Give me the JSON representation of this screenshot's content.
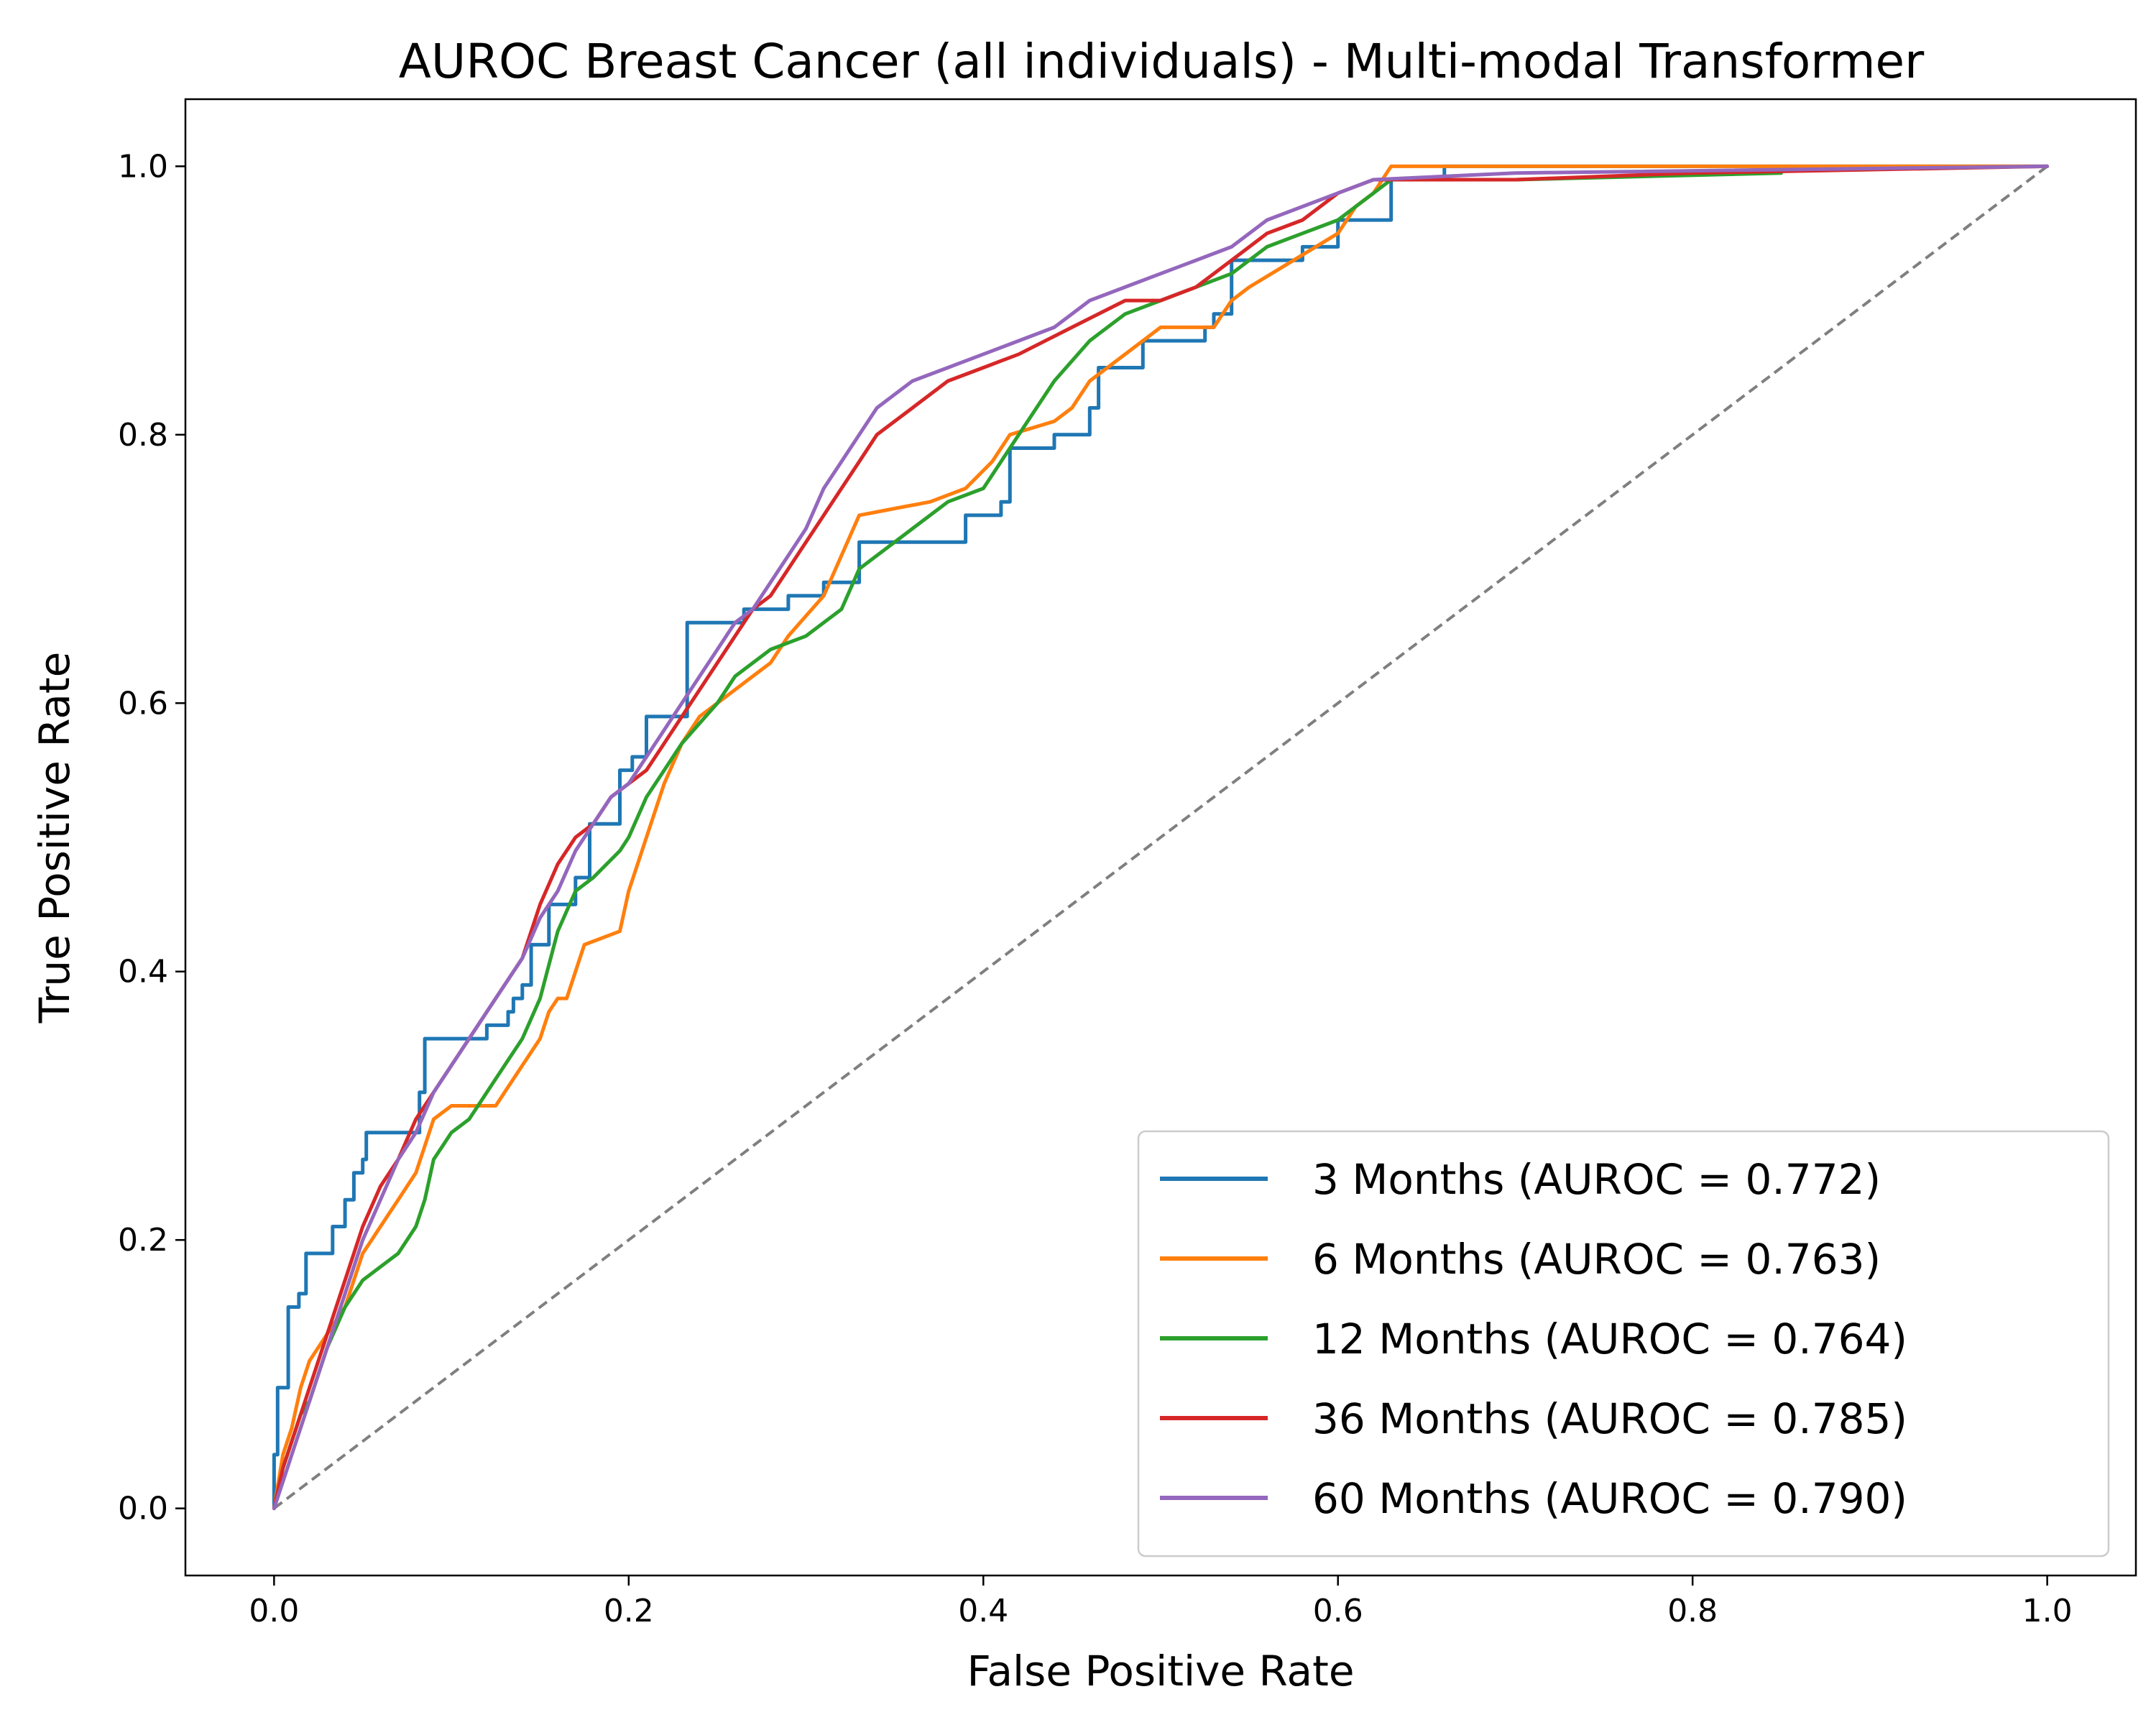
{
  "chart_data": {
    "type": "line",
    "title": "AUROC Breast Cancer (all individuals) - Multi-modal Transformer",
    "xlabel": "False Positive Rate",
    "ylabel": "True Positive Rate",
    "xlim": [
      -0.05,
      1.05
    ],
    "ylim": [
      -0.05,
      1.05
    ],
    "xticks": [
      "0.0",
      "0.2",
      "0.4",
      "0.6",
      "0.8",
      "1.0"
    ],
    "yticks": [
      "0.0",
      "0.2",
      "0.4",
      "0.6",
      "0.8",
      "1.0"
    ],
    "grid": false,
    "legend_position": "lower-right",
    "reference_line": {
      "x": [
        0,
        1
      ],
      "y": [
        0,
        1
      ],
      "style": "dashed",
      "color": "#7f7f7f"
    },
    "series": [
      {
        "name": "3 Months (AUROC = 0.772)",
        "color": "#1f77b4",
        "points": [
          [
            0,
            0
          ],
          [
            0,
            0.04
          ],
          [
            0.002,
            0.04
          ],
          [
            0.002,
            0.09
          ],
          [
            0.008,
            0.09
          ],
          [
            0.008,
            0.15
          ],
          [
            0.014,
            0.15
          ],
          [
            0.014,
            0.16
          ],
          [
            0.018,
            0.16
          ],
          [
            0.018,
            0.19
          ],
          [
            0.033,
            0.19
          ],
          [
            0.033,
            0.21
          ],
          [
            0.04,
            0.21
          ],
          [
            0.04,
            0.23
          ],
          [
            0.045,
            0.23
          ],
          [
            0.045,
            0.25
          ],
          [
            0.05,
            0.25
          ],
          [
            0.05,
            0.26
          ],
          [
            0.052,
            0.26
          ],
          [
            0.052,
            0.28
          ],
          [
            0.082,
            0.28
          ],
          [
            0.082,
            0.31
          ],
          [
            0.085,
            0.31
          ],
          [
            0.085,
            0.35
          ],
          [
            0.12,
            0.35
          ],
          [
            0.12,
            0.36
          ],
          [
            0.132,
            0.36
          ],
          [
            0.132,
            0.37
          ],
          [
            0.135,
            0.37
          ],
          [
            0.135,
            0.38
          ],
          [
            0.14,
            0.38
          ],
          [
            0.14,
            0.39
          ],
          [
            0.145,
            0.39
          ],
          [
            0.145,
            0.42
          ],
          [
            0.155,
            0.42
          ],
          [
            0.155,
            0.45
          ],
          [
            0.17,
            0.45
          ],
          [
            0.17,
            0.47
          ],
          [
            0.178,
            0.47
          ],
          [
            0.178,
            0.51
          ],
          [
            0.195,
            0.51
          ],
          [
            0.195,
            0.55
          ],
          [
            0.202,
            0.55
          ],
          [
            0.202,
            0.56
          ],
          [
            0.21,
            0.56
          ],
          [
            0.21,
            0.59
          ],
          [
            0.233,
            0.59
          ],
          [
            0.233,
            0.66
          ],
          [
            0.265,
            0.66
          ],
          [
            0.265,
            0.67
          ],
          [
            0.29,
            0.67
          ],
          [
            0.29,
            0.68
          ],
          [
            0.31,
            0.68
          ],
          [
            0.31,
            0.69
          ],
          [
            0.33,
            0.69
          ],
          [
            0.33,
            0.72
          ],
          [
            0.39,
            0.72
          ],
          [
            0.39,
            0.74
          ],
          [
            0.41,
            0.74
          ],
          [
            0.41,
            0.75
          ],
          [
            0.415,
            0.75
          ],
          [
            0.415,
            0.79
          ],
          [
            0.44,
            0.79
          ],
          [
            0.44,
            0.8
          ],
          [
            0.46,
            0.8
          ],
          [
            0.46,
            0.82
          ],
          [
            0.465,
            0.82
          ],
          [
            0.465,
            0.85
          ],
          [
            0.49,
            0.85
          ],
          [
            0.49,
            0.87
          ],
          [
            0.525,
            0.87
          ],
          [
            0.525,
            0.88
          ],
          [
            0.53,
            0.88
          ],
          [
            0.53,
            0.89
          ],
          [
            0.54,
            0.89
          ],
          [
            0.54,
            0.93
          ],
          [
            0.58,
            0.93
          ],
          [
            0.58,
            0.94
          ],
          [
            0.6,
            0.94
          ],
          [
            0.6,
            0.96
          ],
          [
            0.63,
            0.96
          ],
          [
            0.63,
            0.99
          ],
          [
            0.66,
            0.99
          ],
          [
            0.66,
            1.0
          ],
          [
            1.0,
            1.0
          ]
        ]
      },
      {
        "name": "6 Months (AUROC = 0.763)",
        "color": "#ff7f0e",
        "points": [
          [
            0,
            0
          ],
          [
            0.005,
            0.04
          ],
          [
            0.01,
            0.06
          ],
          [
            0.015,
            0.09
          ],
          [
            0.02,
            0.11
          ],
          [
            0.025,
            0.12
          ],
          [
            0.03,
            0.13
          ],
          [
            0.035,
            0.14
          ],
          [
            0.04,
            0.15
          ],
          [
            0.045,
            0.17
          ],
          [
            0.05,
            0.19
          ],
          [
            0.055,
            0.2
          ],
          [
            0.06,
            0.21
          ],
          [
            0.07,
            0.23
          ],
          [
            0.08,
            0.25
          ],
          [
            0.085,
            0.27
          ],
          [
            0.09,
            0.29
          ],
          [
            0.1,
            0.3
          ],
          [
            0.125,
            0.3
          ],
          [
            0.13,
            0.31
          ],
          [
            0.135,
            0.32
          ],
          [
            0.14,
            0.33
          ],
          [
            0.15,
            0.35
          ],
          [
            0.155,
            0.37
          ],
          [
            0.16,
            0.38
          ],
          [
            0.165,
            0.38
          ],
          [
            0.17,
            0.4
          ],
          [
            0.175,
            0.42
          ],
          [
            0.195,
            0.43
          ],
          [
            0.2,
            0.46
          ],
          [
            0.205,
            0.48
          ],
          [
            0.21,
            0.5
          ],
          [
            0.22,
            0.54
          ],
          [
            0.23,
            0.57
          ],
          [
            0.24,
            0.59
          ],
          [
            0.25,
            0.6
          ],
          [
            0.27,
            0.62
          ],
          [
            0.28,
            0.63
          ],
          [
            0.29,
            0.65
          ],
          [
            0.31,
            0.68
          ],
          [
            0.32,
            0.71
          ],
          [
            0.33,
            0.74
          ],
          [
            0.35,
            0.745
          ],
          [
            0.37,
            0.75
          ],
          [
            0.39,
            0.76
          ],
          [
            0.405,
            0.78
          ],
          [
            0.415,
            0.8
          ],
          [
            0.44,
            0.81
          ],
          [
            0.45,
            0.82
          ],
          [
            0.46,
            0.84
          ],
          [
            0.47,
            0.85
          ],
          [
            0.48,
            0.86
          ],
          [
            0.49,
            0.87
          ],
          [
            0.5,
            0.88
          ],
          [
            0.53,
            0.88
          ],
          [
            0.54,
            0.9
          ],
          [
            0.55,
            0.91
          ],
          [
            0.6,
            0.95
          ],
          [
            0.61,
            0.97
          ],
          [
            0.62,
            0.98
          ],
          [
            0.63,
            1.0
          ],
          [
            1.0,
            1.0
          ]
        ]
      },
      {
        "name": "12 Months (AUROC = 0.764)",
        "color": "#2ca02c",
        "points": [
          [
            0,
            0
          ],
          [
            0.005,
            0.03
          ],
          [
            0.01,
            0.05
          ],
          [
            0.015,
            0.07
          ],
          [
            0.02,
            0.08
          ],
          [
            0.025,
            0.1
          ],
          [
            0.03,
            0.12
          ],
          [
            0.04,
            0.15
          ],
          [
            0.05,
            0.17
          ],
          [
            0.06,
            0.18
          ],
          [
            0.07,
            0.19
          ],
          [
            0.08,
            0.21
          ],
          [
            0.085,
            0.23
          ],
          [
            0.09,
            0.26
          ],
          [
            0.095,
            0.27
          ],
          [
            0.1,
            0.28
          ],
          [
            0.11,
            0.29
          ],
          [
            0.12,
            0.31
          ],
          [
            0.13,
            0.33
          ],
          [
            0.14,
            0.35
          ],
          [
            0.15,
            0.38
          ],
          [
            0.16,
            0.43
          ],
          [
            0.17,
            0.46
          ],
          [
            0.18,
            0.47
          ],
          [
            0.195,
            0.49
          ],
          [
            0.2,
            0.5
          ],
          [
            0.21,
            0.53
          ],
          [
            0.22,
            0.55
          ],
          [
            0.23,
            0.57
          ],
          [
            0.25,
            0.6
          ],
          [
            0.26,
            0.62
          ],
          [
            0.28,
            0.64
          ],
          [
            0.3,
            0.65
          ],
          [
            0.32,
            0.67
          ],
          [
            0.33,
            0.7
          ],
          [
            0.34,
            0.71
          ],
          [
            0.36,
            0.73
          ],
          [
            0.38,
            0.75
          ],
          [
            0.4,
            0.76
          ],
          [
            0.41,
            0.78
          ],
          [
            0.42,
            0.8
          ],
          [
            0.44,
            0.84
          ],
          [
            0.46,
            0.87
          ],
          [
            0.48,
            0.89
          ],
          [
            0.5,
            0.9
          ],
          [
            0.52,
            0.91
          ],
          [
            0.54,
            0.92
          ],
          [
            0.56,
            0.94
          ],
          [
            0.58,
            0.95
          ],
          [
            0.6,
            0.96
          ],
          [
            0.62,
            0.98
          ],
          [
            0.63,
            0.99
          ],
          [
            0.7,
            0.99
          ],
          [
            0.85,
            0.995
          ]
        ]
      },
      {
        "name": "36 Months (AUROC = 0.785)",
        "color": "#d62728",
        "points": [
          [
            0,
            0
          ],
          [
            0.005,
            0.03
          ],
          [
            0.01,
            0.05
          ],
          [
            0.02,
            0.09
          ],
          [
            0.03,
            0.13
          ],
          [
            0.04,
            0.17
          ],
          [
            0.05,
            0.21
          ],
          [
            0.06,
            0.24
          ],
          [
            0.07,
            0.26
          ],
          [
            0.08,
            0.29
          ],
          [
            0.09,
            0.31
          ],
          [
            0.1,
            0.33
          ],
          [
            0.12,
            0.37
          ],
          [
            0.14,
            0.41
          ],
          [
            0.15,
            0.45
          ],
          [
            0.16,
            0.48
          ],
          [
            0.17,
            0.5
          ],
          [
            0.18,
            0.51
          ],
          [
            0.19,
            0.53
          ],
          [
            0.2,
            0.54
          ],
          [
            0.21,
            0.55
          ],
          [
            0.22,
            0.57
          ],
          [
            0.23,
            0.59
          ],
          [
            0.24,
            0.61
          ],
          [
            0.25,
            0.63
          ],
          [
            0.26,
            0.65
          ],
          [
            0.27,
            0.67
          ],
          [
            0.28,
            0.68
          ],
          [
            0.29,
            0.7
          ],
          [
            0.3,
            0.72
          ],
          [
            0.31,
            0.74
          ],
          [
            0.32,
            0.76
          ],
          [
            0.33,
            0.78
          ],
          [
            0.34,
            0.8
          ],
          [
            0.35,
            0.81
          ],
          [
            0.36,
            0.82
          ],
          [
            0.38,
            0.84
          ],
          [
            0.4,
            0.85
          ],
          [
            0.42,
            0.86
          ],
          [
            0.45,
            0.88
          ],
          [
            0.48,
            0.9
          ],
          [
            0.5,
            0.9
          ],
          [
            0.52,
            0.91
          ],
          [
            0.54,
            0.93
          ],
          [
            0.56,
            0.95
          ],
          [
            0.58,
            0.96
          ],
          [
            0.6,
            0.98
          ],
          [
            0.62,
            0.99
          ],
          [
            0.7,
            0.99
          ],
          [
            0.8,
            0.995
          ],
          [
            1.0,
            1.0
          ]
        ]
      },
      {
        "name": "60 Months (AUROC = 0.790)",
        "color": "#9467bd",
        "points": [
          [
            0,
            0
          ],
          [
            0.005,
            0.02
          ],
          [
            0.01,
            0.04
          ],
          [
            0.02,
            0.08
          ],
          [
            0.03,
            0.12
          ],
          [
            0.04,
            0.16
          ],
          [
            0.05,
            0.2
          ],
          [
            0.06,
            0.23
          ],
          [
            0.07,
            0.26
          ],
          [
            0.08,
            0.28
          ],
          [
            0.09,
            0.31
          ],
          [
            0.1,
            0.33
          ],
          [
            0.12,
            0.37
          ],
          [
            0.14,
            0.41
          ],
          [
            0.15,
            0.44
          ],
          [
            0.16,
            0.46
          ],
          [
            0.17,
            0.49
          ],
          [
            0.18,
            0.51
          ],
          [
            0.19,
            0.53
          ],
          [
            0.2,
            0.54
          ],
          [
            0.21,
            0.56
          ],
          [
            0.22,
            0.58
          ],
          [
            0.23,
            0.6
          ],
          [
            0.24,
            0.62
          ],
          [
            0.25,
            0.64
          ],
          [
            0.26,
            0.66
          ],
          [
            0.27,
            0.67
          ],
          [
            0.28,
            0.69
          ],
          [
            0.29,
            0.71
          ],
          [
            0.3,
            0.73
          ],
          [
            0.31,
            0.76
          ],
          [
            0.32,
            0.78
          ],
          [
            0.33,
            0.8
          ],
          [
            0.34,
            0.82
          ],
          [
            0.35,
            0.83
          ],
          [
            0.36,
            0.84
          ],
          [
            0.38,
            0.85
          ],
          [
            0.4,
            0.86
          ],
          [
            0.42,
            0.87
          ],
          [
            0.44,
            0.88
          ],
          [
            0.46,
            0.9
          ],
          [
            0.48,
            0.91
          ],
          [
            0.5,
            0.92
          ],
          [
            0.52,
            0.93
          ],
          [
            0.54,
            0.94
          ],
          [
            0.56,
            0.96
          ],
          [
            0.58,
            0.97
          ],
          [
            0.6,
            0.98
          ],
          [
            0.62,
            0.99
          ],
          [
            0.7,
            0.995
          ],
          [
            1.0,
            1.0
          ]
        ]
      }
    ]
  }
}
